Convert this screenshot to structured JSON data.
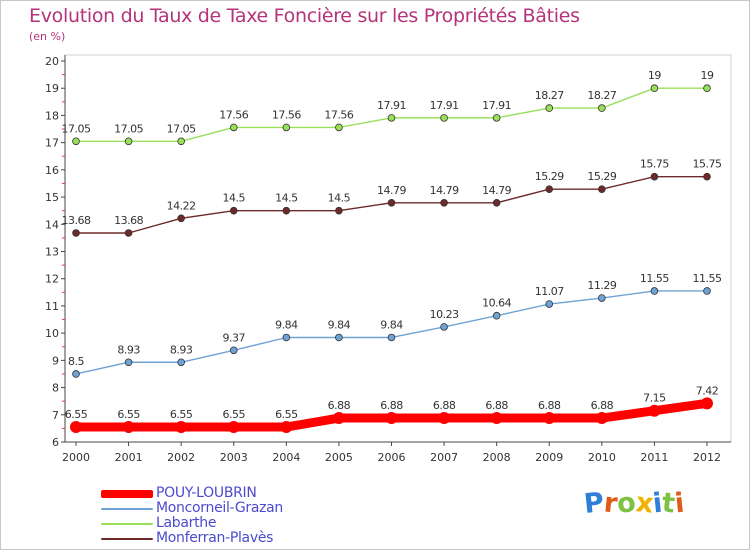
{
  "title": "Evolution du Taux de Taxe Foncière sur les Propriétés Bâties",
  "subtitle": "(en %)",
  "logo_text": "Proxiti",
  "chart_data": {
    "type": "line",
    "x": [
      "2000",
      "2001",
      "2002",
      "2003",
      "2004",
      "2005",
      "2006",
      "2007",
      "2008",
      "2009",
      "2010",
      "2011",
      "2012"
    ],
    "ylim": [
      6,
      20
    ],
    "yticks": [
      6,
      7,
      8,
      9,
      10,
      11,
      12,
      13,
      14,
      15,
      16,
      17,
      18,
      19,
      20
    ],
    "grid": false,
    "legend_position": "bottom-left",
    "series": [
      {
        "name": "Labarthe",
        "color": "#99e05a",
        "values": [
          17.05,
          17.05,
          17.05,
          17.56,
          17.56,
          17.56,
          17.91,
          17.91,
          17.91,
          18.27,
          18.27,
          19,
          19
        ],
        "labels": [
          "17.05",
          "17.05",
          "17.05",
          "17.56",
          "17.56",
          "17.56",
          "17.91",
          "17.91",
          "17.91",
          "18.27",
          "18.27",
          "19",
          "19"
        ]
      },
      {
        "name": "Monferran-Plavès",
        "color": "#6e2a2a",
        "values": [
          13.68,
          13.68,
          14.22,
          14.5,
          14.5,
          14.5,
          14.79,
          14.79,
          14.79,
          15.29,
          15.29,
          15.75,
          15.75
        ],
        "labels": [
          "13.68",
          "13.68",
          "14.22",
          "14.5",
          "14.5",
          "14.5",
          "14.79",
          "14.79",
          "14.79",
          "15.29",
          "15.29",
          "15.75",
          "15.75"
        ]
      },
      {
        "name": "Moncorneil-Grazan",
        "color": "#6fa3d6",
        "values": [
          8.5,
          8.93,
          8.93,
          9.37,
          9.84,
          9.84,
          9.84,
          10.23,
          10.64,
          11.07,
          11.29,
          11.55,
          11.55
        ],
        "labels": [
          "8.5",
          "8.93",
          "8.93",
          "9.37",
          "9.84",
          "9.84",
          "9.84",
          "10.23",
          "10.64",
          "11.07",
          "11.29",
          "11.55",
          "11.55"
        ]
      },
      {
        "name": "POUY-LOUBRIN",
        "color": "#ff0000",
        "values": [
          6.55,
          6.55,
          6.55,
          6.55,
          6.55,
          6.88,
          6.88,
          6.88,
          6.88,
          6.88,
          6.88,
          7.15,
          7.42
        ],
        "labels": [
          "6.55",
          "6.55",
          "6.55",
          "6.55",
          "6.55",
          "6.88",
          "6.88",
          "6.88",
          "6.88",
          "6.88",
          "6.88",
          "7.15",
          "7.42"
        ]
      }
    ],
    "legend": [
      "POUY-LOUBRIN",
      "Moncorneil-Grazan",
      "Labarthe",
      "Monferran-Plavès"
    ]
  }
}
